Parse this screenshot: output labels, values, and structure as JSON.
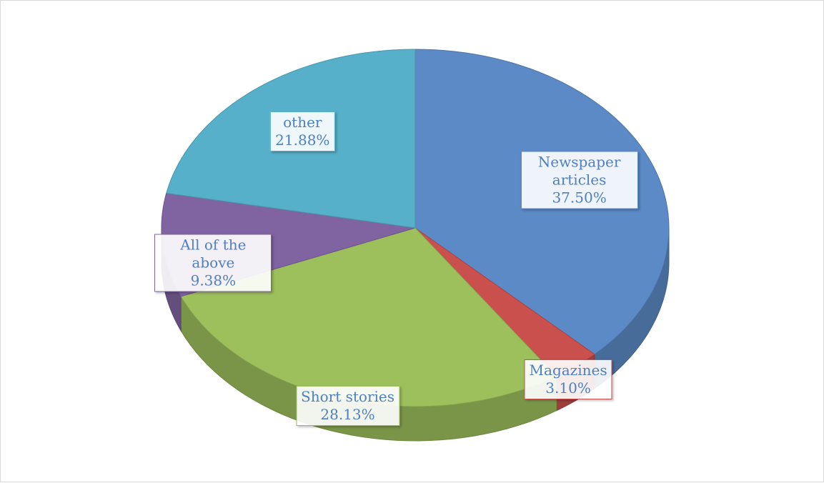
{
  "chart_data": {
    "type": "pie",
    "categories": [
      "Newspaper articles",
      "Magazines",
      "Short stories",
      "All of the above",
      "other"
    ],
    "values": [
      37.5,
      3.1,
      28.13,
      9.38,
      21.88
    ],
    "value_labels": [
      "37.50%",
      "3.10%",
      "28.13%",
      "9.38%",
      "21.88%"
    ],
    "colors": [
      "#5b8ac6",
      "#c9504d",
      "#9dbf5c",
      "#8064a2",
      "#56b0c9"
    ],
    "3d": true
  }
}
